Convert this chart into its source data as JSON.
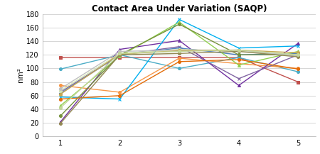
{
  "title": "Contact Area Under Variation (SAQP)",
  "ylabel": "nm²",
  "xlim": [
    0.7,
    5.3
  ],
  "ylim": [
    0,
    180
  ],
  "yticks": [
    0,
    20,
    40,
    60,
    80,
    100,
    120,
    140,
    160,
    180
  ],
  "xticks": [
    1,
    2,
    3,
    4,
    5
  ],
  "series": [
    {
      "color": "#c0504d",
      "marker": "s",
      "values": [
        116,
        116,
        116,
        116,
        80
      ]
    },
    {
      "color": "#4bacc6",
      "marker": "o",
      "values": [
        99,
        120,
        100,
        116,
        95
      ]
    },
    {
      "color": "#f79646",
      "marker": "o",
      "values": [
        75,
        65,
        115,
        107,
        100
      ]
    },
    {
      "color": "#7030a0",
      "marker": "^",
      "values": [
        21,
        128,
        141,
        75,
        137
      ]
    },
    {
      "color": "#8064a2",
      "marker": "x",
      "values": [
        65,
        120,
        132,
        85,
        120
      ]
    },
    {
      "color": "#4f81bd",
      "marker": "o",
      "values": [
        63,
        120,
        130,
        120,
        122
      ]
    },
    {
      "color": "#00b0f0",
      "marker": "x",
      "values": [
        58,
        55,
        172,
        130,
        133
      ]
    },
    {
      "color": "#92d050",
      "marker": "^",
      "values": [
        45,
        118,
        168,
        105,
        125
      ]
    },
    {
      "color": "#76923c",
      "marker": "o",
      "values": [
        30,
        120,
        165,
        120,
        120
      ]
    },
    {
      "color": "#d4e6b5",
      "marker": "o",
      "values": [
        67,
        122,
        128,
        125,
        120
      ]
    },
    {
      "color": "#bfbfbf",
      "marker": "o",
      "values": [
        70,
        125,
        127,
        127,
        118
      ]
    },
    {
      "color": "#c8a951",
      "marker": "o",
      "values": [
        62,
        121,
        126,
        127,
        123
      ]
    },
    {
      "color": "#e36c09",
      "marker": "o",
      "values": [
        55,
        60,
        110,
        113,
        99
      ]
    },
    {
      "color": "#938953",
      "marker": "o",
      "values": [
        19,
        120,
        122,
        125,
        117
      ]
    },
    {
      "color": "#c3d69b",
      "marker": "o",
      "values": [
        42,
        122,
        125,
        127,
        120
      ]
    }
  ],
  "background_color": "#ffffff",
  "grid_color": "#d0d0d0",
  "title_fontsize": 8.5,
  "label_fontsize": 7.5,
  "tick_fontsize": 7
}
